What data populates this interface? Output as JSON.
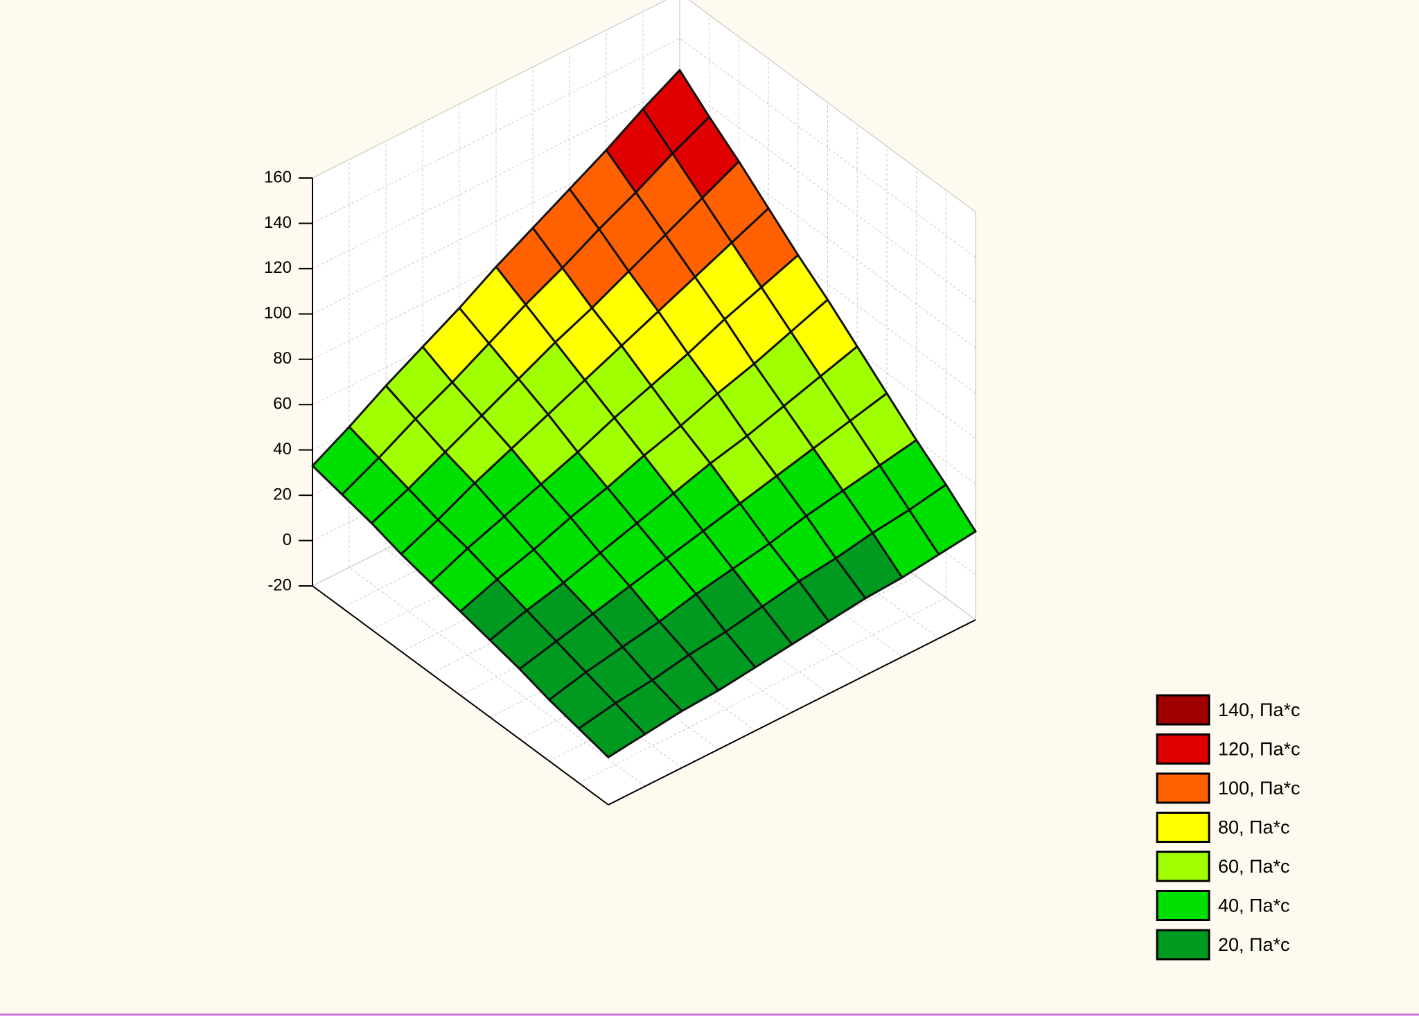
{
  "chart_data": {
    "type": "surface",
    "zlim": [
      -20,
      160
    ],
    "zticks": [
      -20,
      0,
      20,
      40,
      60,
      80,
      100,
      120,
      140,
      160
    ],
    "grid": true,
    "legend_position": "lower right",
    "z": [
      [
        1,
        3,
        5,
        6,
        8,
        10,
        12,
        14,
        15,
        17,
        19
      ],
      [
        4,
        7,
        9,
        12,
        14,
        17,
        20,
        22,
        25,
        27,
        30
      ],
      [
        7,
        11,
        14,
        17,
        21,
        24,
        27,
        31,
        34,
        37,
        40
      ],
      [
        11,
        15,
        19,
        23,
        27,
        31,
        35,
        39,
        43,
        47,
        51
      ],
      [
        14,
        19,
        23,
        28,
        33,
        38,
        43,
        47,
        52,
        57,
        62
      ],
      [
        17,
        23,
        28,
        34,
        39,
        45,
        50,
        56,
        61,
        67,
        73
      ],
      [
        20,
        27,
        33,
        39,
        45,
        52,
        58,
        64,
        71,
        77,
        83
      ],
      [
        23,
        30,
        38,
        45,
        52,
        59,
        66,
        73,
        80,
        87,
        94
      ],
      [
        27,
        34,
        42,
        50,
        58,
        66,
        73,
        81,
        89,
        97,
        105
      ],
      [
        30,
        38,
        47,
        55,
        64,
        73,
        81,
        90,
        98,
        107,
        115
      ],
      [
        33,
        42,
        52,
        61,
        70,
        80,
        89,
        98,
        107,
        117,
        126
      ]
    ],
    "levels": [
      {
        "value": 140,
        "label": "140, Па*с",
        "color": "#a00000"
      },
      {
        "value": 120,
        "label": "120, Па*с",
        "color": "#e00000"
      },
      {
        "value": 100,
        "label": "100, Па*с",
        "color": "#ff6000"
      },
      {
        "value": 80,
        "label": "80, Па*с",
        "color": "#ffff00"
      },
      {
        "value": 60,
        "label": "60, Па*с",
        "color": "#a0ff00"
      },
      {
        "value": 40,
        "label": "40, Па*с",
        "color": "#00e000"
      },
      {
        "value": 20,
        "label": "20, Па*с",
        "color": "#009a20"
      }
    ]
  }
}
